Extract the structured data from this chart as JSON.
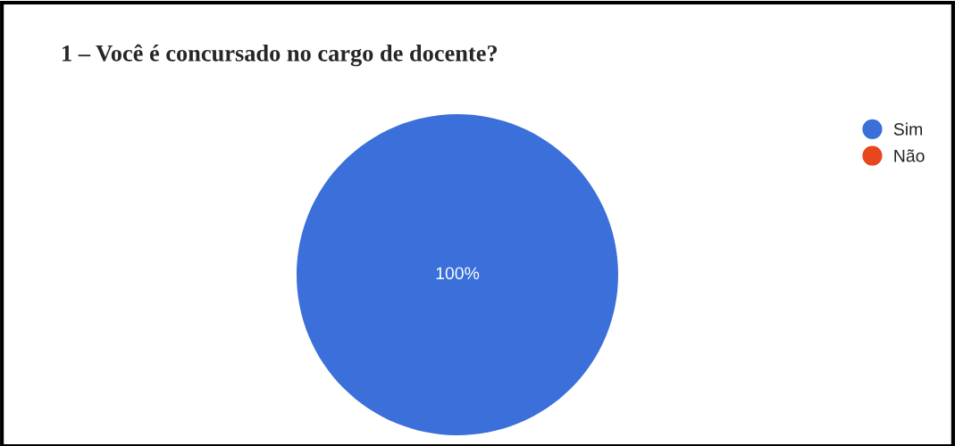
{
  "chart_data": {
    "type": "pie",
    "title": "1 – Você é concursado no cargo de docente?",
    "categories": [
      "Sim",
      "Não"
    ],
    "values": [
      100,
      0
    ],
    "colors": [
      "#3b6fd9",
      "#e8461e"
    ],
    "value_labels": [
      "100%",
      null
    ],
    "legend": "top right"
  }
}
